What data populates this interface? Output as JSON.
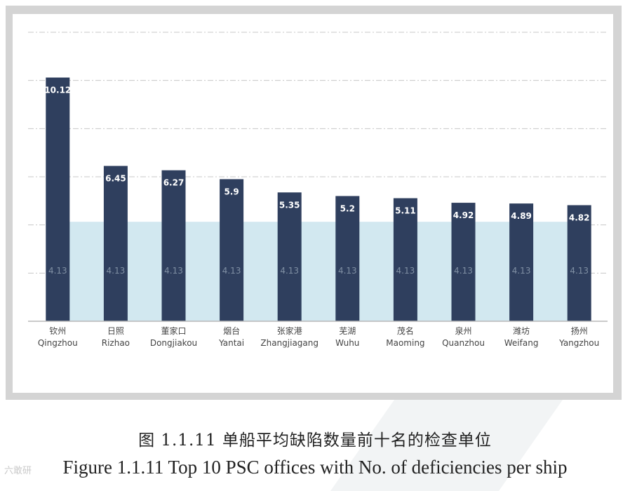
{
  "chart_data": {
    "type": "bar",
    "categories_cn": [
      "钦州",
      "日照",
      "董家口",
      "烟台",
      "张家港",
      "芜湖",
      "茂名",
      "泉州",
      "潍坊",
      "扬州"
    ],
    "categories": [
      "Qingzhou",
      "Rizhao",
      "Dongjiakou",
      "Yantai",
      "Zhangjiagang",
      "Wuhu",
      "Maoming",
      "Quanzhou",
      "Weifang",
      "Yangzhou"
    ],
    "series": [
      {
        "values": [
          10.12,
          6.45,
          6.27,
          5.9,
          5.35,
          5.2,
          5.11,
          4.92,
          4.89,
          4.82
        ],
        "color": "#2f3f5e"
      },
      {
        "values": [
          4.13,
          4.13,
          4.13,
          4.13,
          4.13,
          4.13,
          4.13,
          4.13,
          4.13,
          4.13
        ],
        "color": "#d2e8f0",
        "display": "area"
      }
    ],
    "value_labels": [
      "10.12",
      "6.45",
      "6.27",
      "5.9",
      "5.35",
      "5.2",
      "5.11",
      "4.92",
      "4.89",
      "4.82"
    ],
    "average_labels": [
      "4.13",
      "4.13",
      "4.13",
      "4.13",
      "4.13",
      "4.13",
      "4.13",
      "4.13",
      "4.13",
      "4.13"
    ],
    "ylim": [
      0,
      12
    ],
    "grid": true,
    "grid_style": "dash-dot",
    "y_tick_labels_shown": false
  },
  "caption": {
    "cn": "图 1.1.11 单船平均缺陷数量前十名的检查单位",
    "en": "Figure 1.1.11 Top 10 PSC offices with No. of deficiencies per ship"
  },
  "watermark": {
    "text": "六敢研"
  }
}
